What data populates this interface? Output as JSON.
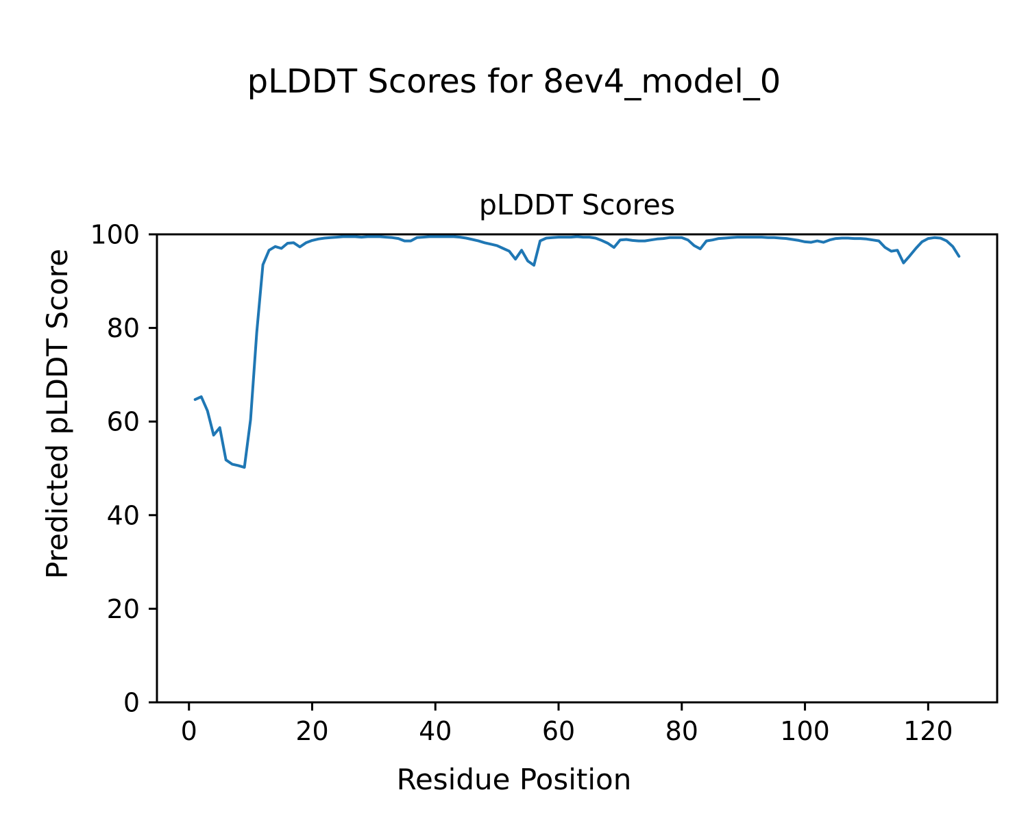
{
  "chart_data": {
    "type": "line",
    "suptitle": "pLDDT Scores for 8ev4_model_0",
    "title": "pLDDT Scores",
    "xlabel": "Residue Position",
    "ylabel": "Predicted pLDDT Score",
    "xlim": [
      -5.2,
      131.2
    ],
    "ylim": [
      0,
      100
    ],
    "xticks": [
      0,
      20,
      40,
      60,
      80,
      100,
      120
    ],
    "yticks": [
      0,
      20,
      40,
      60,
      80,
      100
    ],
    "grid": false,
    "legend": null,
    "line_color": "#1f77b4",
    "series": [
      {
        "name": "pLDDT",
        "x": [
          1,
          2,
          3,
          4,
          5,
          6,
          7,
          8,
          9,
          10,
          11,
          12,
          13,
          14,
          15,
          16,
          17,
          18,
          19,
          20,
          21,
          22,
          23,
          24,
          25,
          26,
          27,
          28,
          29,
          30,
          31,
          32,
          33,
          34,
          35,
          36,
          37,
          38,
          39,
          40,
          41,
          42,
          43,
          44,
          45,
          46,
          47,
          48,
          49,
          50,
          51,
          52,
          53,
          54,
          55,
          56,
          57,
          58,
          59,
          60,
          61,
          62,
          63,
          64,
          65,
          66,
          67,
          68,
          69,
          70,
          71,
          72,
          73,
          74,
          75,
          76,
          77,
          78,
          79,
          80,
          81,
          82,
          83,
          84,
          85,
          86,
          87,
          88,
          89,
          90,
          91,
          92,
          93,
          94,
          95,
          96,
          97,
          98,
          99,
          100,
          101,
          102,
          103,
          104,
          105,
          106,
          107,
          108,
          109,
          110,
          111,
          112,
          113,
          114,
          115,
          116,
          117,
          118,
          119,
          120,
          121,
          122,
          123,
          124,
          125
        ],
        "values": [
          64.7,
          65.3,
          62.3,
          57.1,
          58.7,
          51.8,
          50.9,
          50.6,
          50.2,
          60.4,
          79.0,
          93.5,
          96.6,
          97.4,
          97.0,
          98.1,
          98.2,
          97.3,
          98.2,
          98.7,
          99.0,
          99.2,
          99.3,
          99.4,
          99.5,
          99.5,
          99.5,
          99.4,
          99.5,
          99.5,
          99.5,
          99.4,
          99.3,
          99.1,
          98.6,
          98.6,
          99.3,
          99.4,
          99.5,
          99.5,
          99.5,
          99.5,
          99.5,
          99.4,
          99.2,
          98.9,
          98.6,
          98.2,
          97.9,
          97.6,
          97.0,
          96.4,
          94.7,
          96.6,
          94.3,
          93.4,
          98.6,
          99.2,
          99.3,
          99.4,
          99.4,
          99.4,
          99.5,
          99.4,
          99.4,
          99.2,
          98.7,
          98.1,
          97.2,
          98.8,
          98.9,
          98.7,
          98.6,
          98.6,
          98.8,
          99.0,
          99.1,
          99.3,
          99.3,
          99.3,
          98.8,
          97.6,
          96.9,
          98.6,
          98.8,
          99.1,
          99.2,
          99.3,
          99.4,
          99.4,
          99.4,
          99.4,
          99.4,
          99.3,
          99.3,
          99.2,
          99.1,
          98.9,
          98.7,
          98.4,
          98.3,
          98.6,
          98.3,
          98.8,
          99.1,
          99.2,
          99.2,
          99.1,
          99.1,
          99.0,
          98.8,
          98.6,
          97.2,
          96.4,
          96.6,
          93.9,
          95.4,
          97.0,
          98.4,
          99.1,
          99.3,
          99.2,
          98.6,
          97.4,
          95.3
        ]
      }
    ]
  }
}
